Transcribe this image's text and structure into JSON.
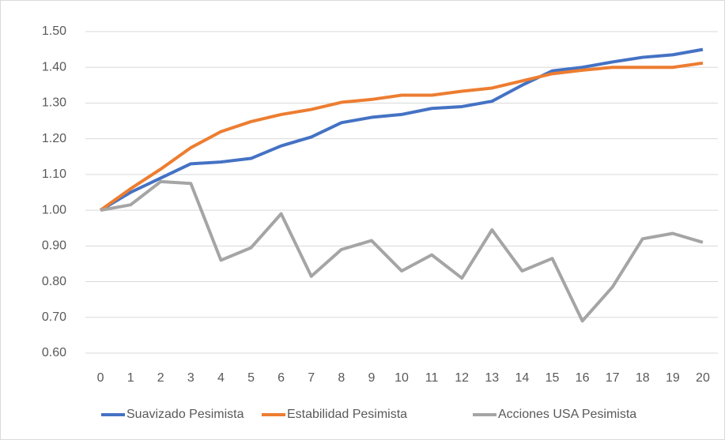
{
  "chart_data": {
    "type": "line",
    "categories": [
      "0",
      "1",
      "2",
      "3",
      "4",
      "5",
      "6",
      "7",
      "8",
      "9",
      "10",
      "11",
      "12",
      "13",
      "14",
      "15",
      "16",
      "17",
      "18",
      "19",
      "20"
    ],
    "series": [
      {
        "name": "Suavizado Pesimista",
        "color": "#4472c4",
        "values": [
          1.0,
          1.05,
          1.09,
          1.13,
          1.135,
          1.145,
          1.18,
          1.205,
          1.245,
          1.26,
          1.268,
          1.285,
          1.29,
          1.305,
          1.35,
          1.39,
          1.4,
          1.415,
          1.428,
          1.435,
          1.45
        ]
      },
      {
        "name": "Estabilidad Pesimista",
        "color": "#ed7d31",
        "values": [
          1.0,
          1.06,
          1.115,
          1.175,
          1.22,
          1.248,
          1.268,
          1.282,
          1.302,
          1.31,
          1.322,
          1.322,
          1.333,
          1.342,
          1.362,
          1.382,
          1.392,
          1.4,
          1.4,
          1.4,
          1.412
        ]
      },
      {
        "name": "Acciones USA Pesimista",
        "color": "#a5a5a5",
        "values": [
          1.0,
          1.015,
          1.08,
          1.075,
          0.86,
          0.895,
          0.99,
          0.815,
          0.89,
          0.915,
          0.83,
          0.875,
          0.81,
          0.945,
          0.83,
          0.865,
          0.69,
          0.785,
          0.92,
          0.935,
          0.91
        ]
      }
    ],
    "ylim": [
      0.6,
      1.5
    ],
    "yticks": [
      {
        "value": 0.6,
        "label": "0.60"
      },
      {
        "value": 0.7,
        "label": "0.70"
      },
      {
        "value": 0.8,
        "label": "0.80"
      },
      {
        "value": 0.9,
        "label": "0.90"
      },
      {
        "value": 1.0,
        "label": "1.00"
      },
      {
        "value": 1.1,
        "label": "1.10"
      },
      {
        "value": 1.2,
        "label": "1.20"
      },
      {
        "value": 1.3,
        "label": "1.30"
      },
      {
        "value": 1.4,
        "label": "1.40"
      },
      {
        "value": 1.5,
        "label": "1.50"
      }
    ],
    "grid": true,
    "legend": "bottom"
  }
}
